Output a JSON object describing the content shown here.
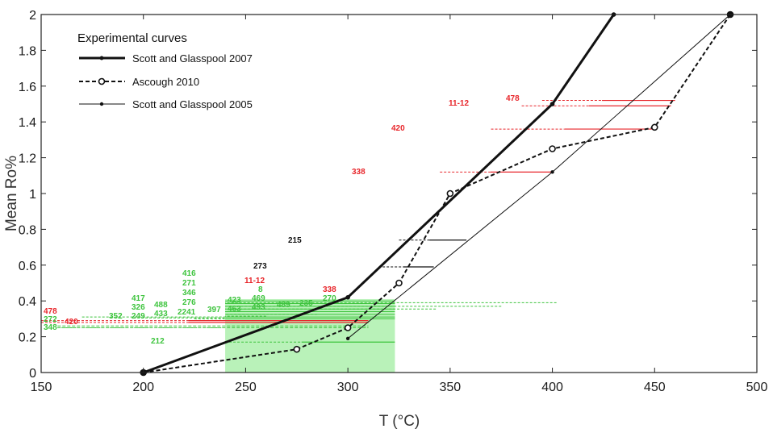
{
  "chart_data": {
    "type": "line",
    "xlabel": "T (°C)",
    "ylabel": "Mean Ro%",
    "xlim": [
      150,
      500
    ],
    "ylim": [
      0,
      2
    ],
    "x_ticks": [
      "150",
      "200",
      "250",
      "300",
      "350",
      "400",
      "450",
      "500"
    ],
    "y_ticks": [
      "0",
      "0.2",
      "0.4",
      "0.6",
      "0.8",
      "1",
      "1.2",
      "1.4",
      "1.6",
      "1.8",
      "2"
    ],
    "legend": {
      "title": "Experimental curves",
      "position": "top-left"
    },
    "series": [
      {
        "name": "Scott and Glasspool 2007",
        "style": "thick-solid",
        "x": [
          200,
          300,
          400,
          430
        ],
        "y": [
          0,
          0.42,
          1.5,
          2.0
        ]
      },
      {
        "name": "Ascough 2010",
        "style": "dashed-open-circle",
        "x": [
          200,
          275,
          300,
          325,
          350,
          400,
          450,
          487
        ],
        "y": [
          0,
          0.13,
          0.25,
          0.5,
          1.0,
          1.25,
          1.37,
          2.0
        ]
      },
      {
        "name": "Scott and Glasspool 2005",
        "style": "thin-solid",
        "x": [
          300,
          400,
          487
        ],
        "y": [
          0.19,
          1.12,
          2.0
        ]
      }
    ],
    "shaded_region": {
      "x": [
        240,
        323
      ],
      "y": [
        0,
        0.41
      ],
      "color": "#b9f2b9"
    },
    "sample_lines": [
      {
        "label": "478",
        "color": "red",
        "ro": 1.52,
        "x_start": 395,
        "x_end": 460
      },
      {
        "label": "11-12",
        "color": "red",
        "ro": 1.49,
        "x_start": 385,
        "x_end": 458
      },
      {
        "label": "420",
        "color": "red",
        "ro": 1.36,
        "x_start": 370,
        "x_end": 450
      },
      {
        "label": "338",
        "color": "red",
        "ro": 1.12,
        "x_start": 345,
        "x_end": 400
      },
      {
        "label": "215",
        "color": "black",
        "ro": 0.74,
        "x_start": 325,
        "x_end": 358
      },
      {
        "label": "273",
        "color": "black",
        "ro": 0.59,
        "x_start": 315,
        "x_end": 342
      },
      {
        "label": "478",
        "color": "red",
        "ro": 0.29,
        "x_start": 150,
        "x_end": 310
      },
      {
        "label": "420",
        "color": "red",
        "ro": 0.28,
        "x_start": 150,
        "x_end": 310
      },
      {
        "label": "212",
        "color": "green",
        "ro": 0.17,
        "x_start": 240,
        "x_end": 323
      }
    ],
    "annotations": {
      "left_stack_red": "478",
      "left_stack_green": [
        "272",
        "348"
      ],
      "red_420_left": "420",
      "green_352": "352",
      "green_col1": [
        "417",
        "326",
        "249"
      ],
      "green_col2": [
        "488",
        "433"
      ],
      "green_col3": [
        "416",
        "271",
        "346",
        "276",
        "2241"
      ],
      "green_397": "397",
      "green_col4": [
        "423",
        "463"
      ],
      "red_11_12_mid": "11-12",
      "green_col5": [
        "8",
        "469",
        "493"
      ],
      "green_489": "489",
      "green_235": "235",
      "red_338_low": "338",
      "green_270": "270",
      "green_212": "212"
    }
  },
  "colors": {
    "red": "#e8262b",
    "green": "#3ec43e",
    "black": "#111111",
    "shade": "#b9f2b9"
  }
}
